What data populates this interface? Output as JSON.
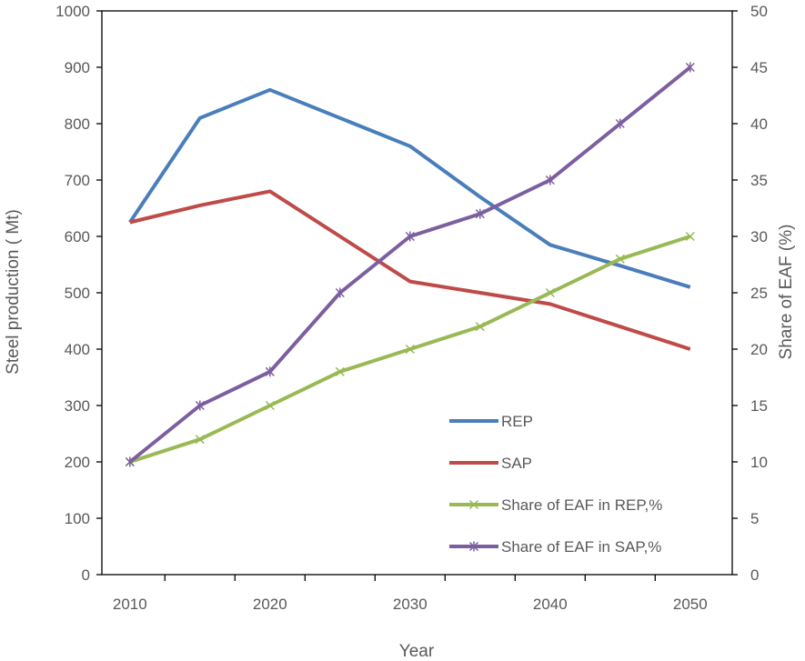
{
  "chart_data": {
    "type": "line",
    "title": "",
    "xlabel": "Year",
    "ylabel": "Steel production ( Mt)",
    "y2label": "Share of EAF (%)",
    "x": [
      2010,
      2015,
      2020,
      2025,
      2030,
      2035,
      2040,
      2045,
      2050
    ],
    "x_tick_labels": [
      "2010",
      "2020",
      "2030",
      "2040",
      "2050"
    ],
    "ylim": [
      0,
      1000
    ],
    "y_ticks": [
      0,
      100,
      200,
      300,
      400,
      500,
      600,
      700,
      800,
      900,
      1000
    ],
    "y2lim": [
      0,
      50
    ],
    "y2_ticks": [
      0,
      5,
      10,
      15,
      20,
      25,
      30,
      35,
      40,
      45,
      50
    ],
    "grid": false,
    "legend_position": "inside-lower-right",
    "series": [
      {
        "name": "REP",
        "axis": "left",
        "color": "#4a7ebb",
        "marker": "none",
        "x": [
          2010,
          2015,
          2020,
          2025,
          2030,
          2035,
          2040,
          2045,
          2050
        ],
        "values": [
          625,
          810,
          860,
          810,
          760,
          670,
          585,
          548,
          510
        ]
      },
      {
        "name": "SAP",
        "axis": "left",
        "color": "#be4b48",
        "marker": "none",
        "x": [
          2010,
          2015,
          2020,
          2025,
          2030,
          2035,
          2040,
          2045,
          2050
        ],
        "values": [
          625,
          655,
          680,
          600,
          520,
          500,
          480,
          440,
          400
        ]
      },
      {
        "name": "Share of EAF in REP,%",
        "axis": "right",
        "color": "#98b954",
        "marker": "x",
        "x": [
          2010,
          2015,
          2020,
          2025,
          2030,
          2035,
          2040,
          2045,
          2050
        ],
        "values": [
          10,
          12,
          15,
          18,
          20,
          22,
          25,
          28,
          30
        ]
      },
      {
        "name": "Share of EAF in SAP,%",
        "axis": "right",
        "color": "#7d5fa0",
        "marker": "star",
        "x": [
          2010,
          2015,
          2020,
          2025,
          2030,
          2035,
          2040,
          2045,
          2050
        ],
        "values": [
          10,
          15,
          18,
          25,
          30,
          32,
          35,
          40,
          45
        ]
      }
    ]
  }
}
